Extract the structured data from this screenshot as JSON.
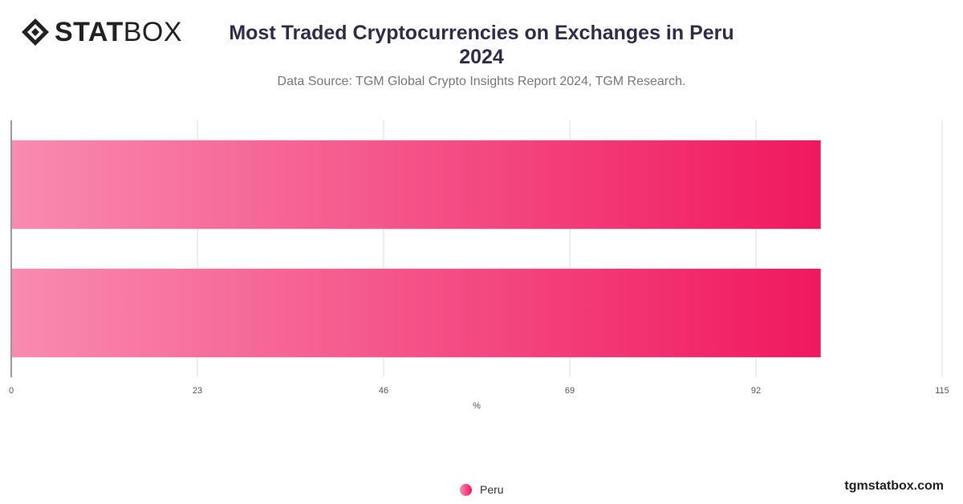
{
  "brand": {
    "logo_bold": "STAT",
    "logo_light": "BOX",
    "footer_url": "tgmstatbox.com"
  },
  "chart_data": {
    "type": "bar",
    "orientation": "horizontal",
    "title_line1": "Most Traded Cryptocurrencies on Exchanges in Peru",
    "title_line2": "2024",
    "subtitle": "Data Source: TGM Global Crypto Insights Report 2024, TGM Research.",
    "categories": [
      "",
      ""
    ],
    "series": [
      {
        "name": "Peru",
        "values": [
          100,
          100
        ]
      }
    ],
    "xlabel": "%",
    "xlim": [
      0,
      115
    ],
    "xticks": [
      0,
      23,
      46,
      69,
      92,
      115
    ],
    "grid": true,
    "legend_position": "bottom",
    "colors": {
      "bar_start": "#f98bb0",
      "bar_end": "#f0185f",
      "grid": "#dddddd",
      "axis": "#333333"
    }
  }
}
